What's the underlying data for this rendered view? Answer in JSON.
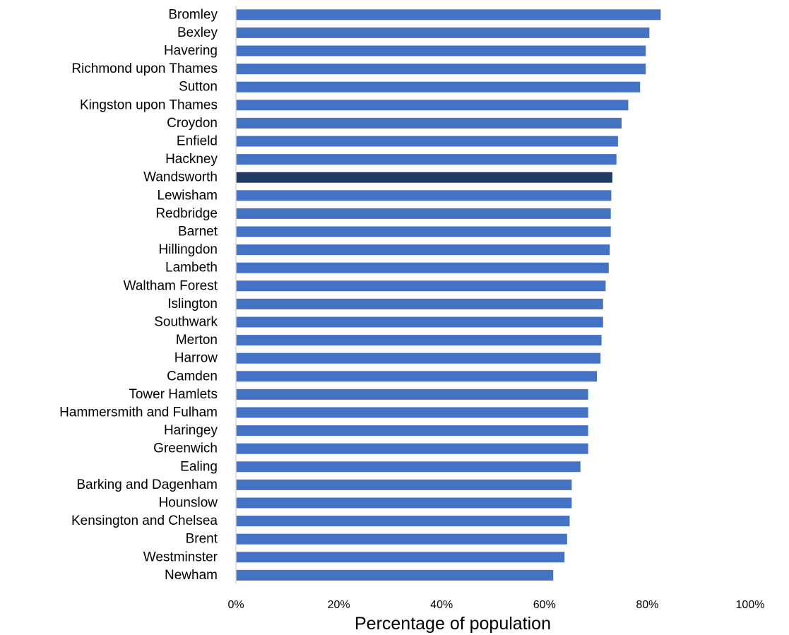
{
  "chart_data": {
    "type": "bar",
    "orientation": "horizontal",
    "categories": [
      "Bromley",
      "Bexley",
      "Havering",
      "Richmond upon Thames",
      "Sutton",
      "Kingston upon Thames",
      "Croydon",
      "Enfield",
      "Hackney",
      "Wandsworth",
      "Lewisham",
      "Redbridge",
      "Barnet",
      "Hillingdon",
      "Lambeth",
      "Waltham Forest",
      "Islington",
      "Southwark",
      "Merton",
      "Harrow",
      "Camden",
      "Tower Hamlets",
      "Hammersmith and Fulham",
      "Haringey",
      "Greenwich",
      "Ealing",
      "Barking and Dagenham",
      "Hounslow",
      "Kensington and Chelsea",
      "Brent",
      "Westminster",
      "Newham"
    ],
    "values": [
      82.6,
      80.4,
      79.7,
      79.7,
      78.6,
      76.3,
      75.0,
      74.3,
      74.0,
      73.2,
      73.0,
      72.9,
      72.9,
      72.7,
      72.5,
      71.9,
      71.4,
      71.4,
      71.1,
      70.9,
      70.2,
      68.5,
      68.5,
      68.5,
      68.5,
      67.0,
      65.3,
      65.3,
      64.9,
      64.4,
      63.9,
      61.7
    ],
    "highlight_category": "Wandsworth",
    "colors": {
      "bar": "#4472C4",
      "highlight": "#203864",
      "axis_line": "#D9D9D9"
    },
    "xlabel": "Percentage of population",
    "ylabel": "",
    "title": "",
    "xlim": [
      0,
      100
    ],
    "x_ticks": [
      "0%",
      "20%",
      "40%",
      "60%",
      "80%",
      "100%"
    ],
    "x_tick_values": [
      0,
      20,
      40,
      60,
      80,
      100
    ],
    "grid": false,
    "legend": false
  }
}
